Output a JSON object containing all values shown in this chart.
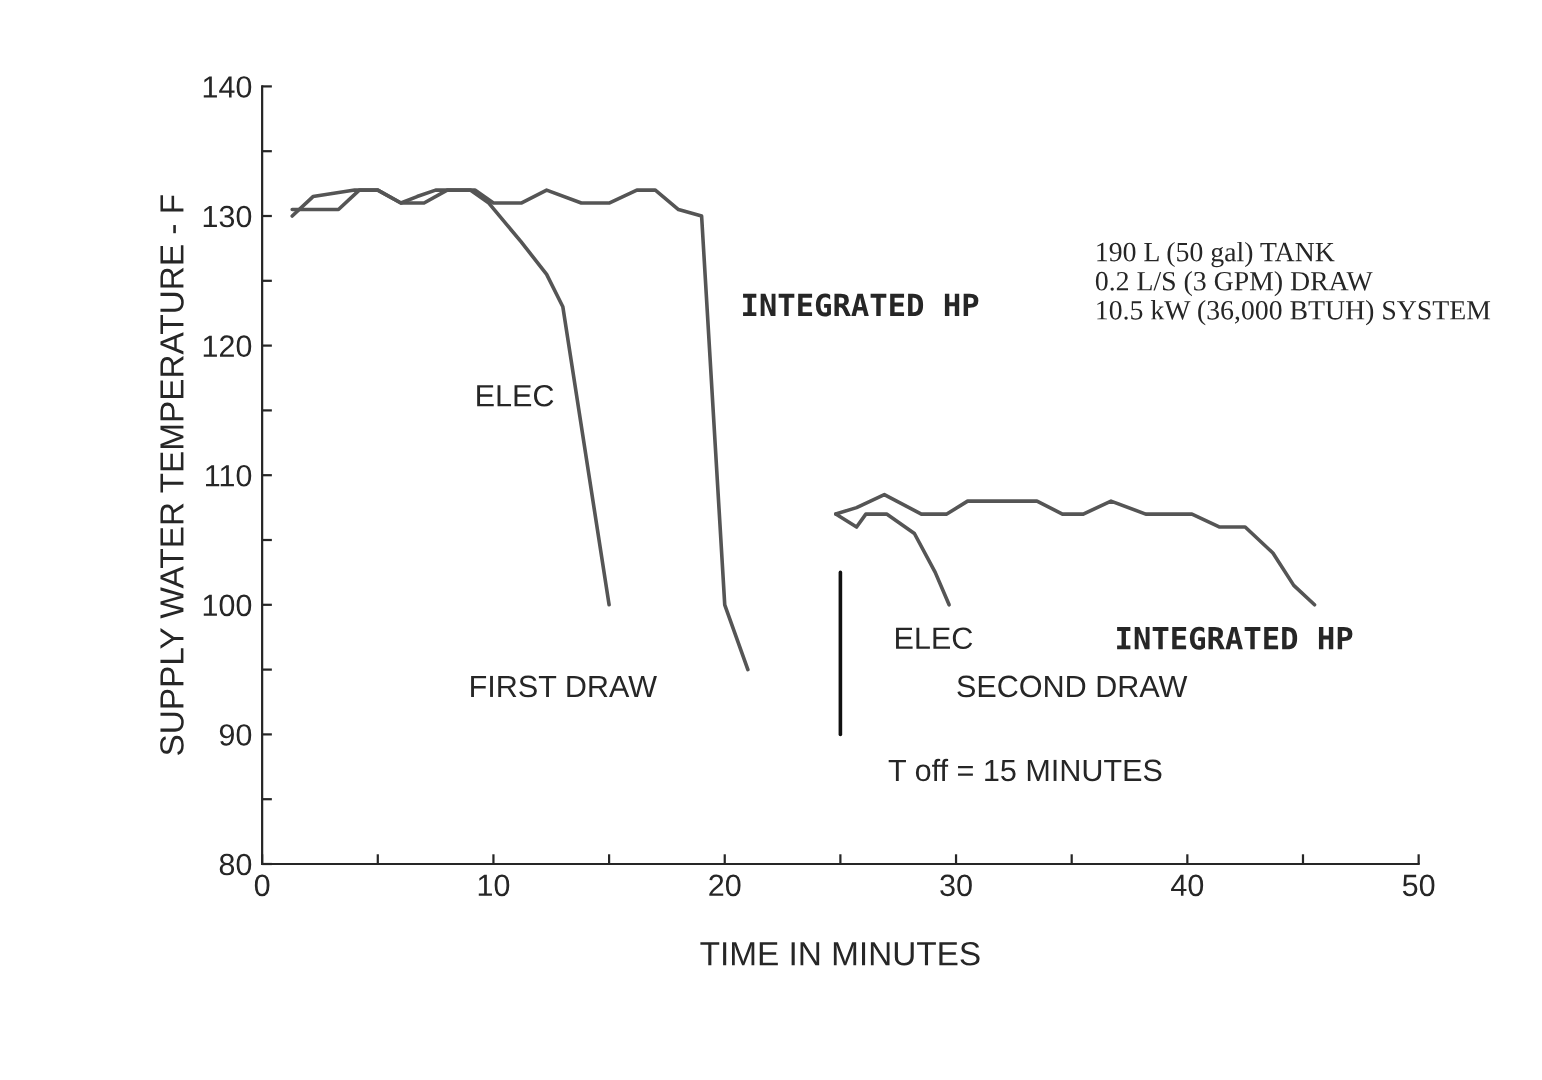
{
  "chart_data": {
    "type": "line",
    "xlabel": "TIME IN MINUTES",
    "ylabel": "SUPPLY WATER TEMPERATURE - F",
    "series": [
      {
        "name": "INTEGRATED HP",
        "color": "#555555",
        "x": [
          1.3,
          2.2,
          4,
          5,
          6,
          7,
          8,
          9.2,
          10,
          11.2,
          12.3,
          13.8,
          15,
          16.2,
          17,
          18,
          19,
          20,
          21
        ],
        "values": [
          130,
          131.5,
          132,
          132,
          131,
          131,
          132,
          132,
          131,
          131,
          132,
          131,
          131,
          132,
          132,
          130.5,
          130,
          100,
          95
        ]
      },
      {
        "name": "ELEC",
        "color": "#555555",
        "x": [
          1.3,
          3.3,
          4.2,
          5,
          6,
          6.7,
          7.5,
          9,
          9.8,
          11.2,
          12.3,
          13,
          15
        ],
        "values": [
          130.5,
          130.5,
          132,
          132,
          131,
          131.5,
          132,
          132,
          131,
          128,
          125.5,
          123,
          100
        ]
      },
      {
        "name": "INTEGRATED HP",
        "color": "#555555",
        "x": [
          24.8,
          25.7,
          26.9,
          28.5,
          29.6,
          30.5,
          33.5,
          34.6,
          35.5,
          36.7,
          38.2,
          40.2,
          41.4,
          42.5,
          43.7,
          44.6,
          45.5
        ],
        "values": [
          107,
          107.5,
          108.5,
          107,
          107,
          108,
          108,
          107,
          107,
          108,
          107,
          107,
          106,
          106,
          104,
          101.5,
          100
        ]
      },
      {
        "name": "ELEC",
        "color": "#555555",
        "x": [
          24.8,
          25.7,
          26.1,
          27,
          28.2,
          29.1,
          29.7
        ],
        "values": [
          107,
          106,
          107,
          107,
          105.5,
          102.5,
          100
        ]
      },
      {
        "color": "#111111",
        "x": [
          25,
          25
        ],
        "values": [
          90,
          102.5
        ]
      }
    ],
    "xlim": [
      0,
      50
    ],
    "ylim": [
      80,
      140
    ],
    "xticks": [
      0,
      {
        "value": 5,
        "label": null
      },
      10,
      {
        "value": 15,
        "label": null
      },
      20,
      {
        "value": 25,
        "label": null
      },
      30,
      {
        "value": 35,
        "label": null
      },
      40,
      {
        "value": 45,
        "label": null
      },
      50
    ],
    "yticks": [
      80,
      {
        "value": 85,
        "label": null
      },
      90,
      {
        "value": 95,
        "label": null
      },
      100,
      {
        "value": 105,
        "label": null
      },
      110,
      {
        "value": 115,
        "label": null
      },
      120,
      {
        "value": 125,
        "label": null
      },
      130,
      {
        "value": 135,
        "label": null
      },
      140
    ],
    "annotations": [
      "FIRST DRAW",
      "SECOND DRAW",
      "T off = 15 MINUTES",
      "190 L (50 gal) TANK\n0.2 L/S (3 GPM) DRAW\n10.5 kW (36,000 BTUH) SYSTEM"
    ],
    "grid": false,
    "legend": false
  }
}
